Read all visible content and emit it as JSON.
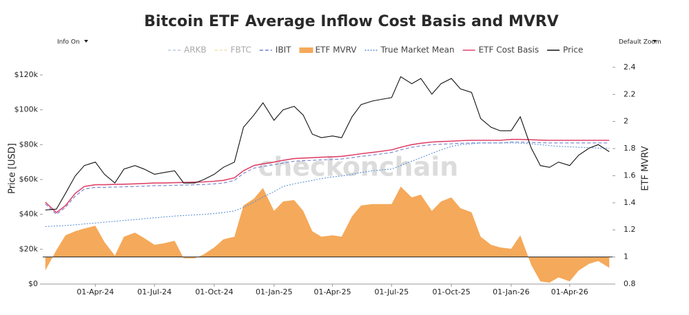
{
  "chart_data": {
    "type": "line",
    "title": "Bitcoin ETF Average Inflow Cost Basis and MVRV",
    "controls": {
      "left": "Info On",
      "right": "Default Zoom"
    },
    "watermark": "checkonchain",
    "y_label": "Price [USD]",
    "y2_label": "ETF MVRV",
    "x": [
      "2024-01-15",
      "2024-02-01",
      "2024-02-15",
      "2024-03-01",
      "2024-03-15",
      "2024-04-01",
      "2024-04-15",
      "2024-05-01",
      "2024-05-15",
      "2024-06-01",
      "2024-06-15",
      "2024-07-01",
      "2024-07-15",
      "2024-08-01",
      "2024-08-15",
      "2024-09-01",
      "2024-09-15",
      "2024-10-01",
      "2024-10-15",
      "2024-11-01",
      "2024-11-15",
      "2024-12-01",
      "2024-12-15",
      "2025-01-01",
      "2025-01-15",
      "2025-02-01",
      "2025-02-15",
      "2025-03-01",
      "2025-03-15",
      "2025-04-01",
      "2025-04-15",
      "2025-05-01",
      "2025-05-15",
      "2025-06-01",
      "2025-06-15",
      "2025-07-01",
      "2025-07-15",
      "2025-08-01",
      "2025-08-15",
      "2025-09-01",
      "2025-09-15",
      "2025-10-01",
      "2025-10-15",
      "2025-11-01",
      "2025-11-15",
      "2025-12-01",
      "2025-12-15",
      "2026-01-01",
      "2026-01-15",
      "2026-02-01",
      "2026-02-15",
      "2026-03-01",
      "2026-03-15",
      "2026-04-01",
      "2026-04-15",
      "2026-05-01",
      "2026-05-15",
      "2026-06-01"
    ],
    "xlim": [
      "2024-01-11",
      "2026-06-06"
    ],
    "xticks": [
      {
        "value": "2024-04-01",
        "label": "01-Apr-24"
      },
      {
        "value": "2024-07-01",
        "label": "01-Jul-24"
      },
      {
        "value": "2024-10-01",
        "label": "01-Oct-24"
      },
      {
        "value": "2025-01-01",
        "label": "01-Jan-25"
      },
      {
        "value": "2025-04-01",
        "label": "01-Apr-25"
      },
      {
        "value": "2025-07-01",
        "label": "01-Jul-25"
      },
      {
        "value": "2025-10-01",
        "label": "01-Oct-25"
      },
      {
        "value": "2026-01-01",
        "label": "01-Jan-26"
      },
      {
        "value": "2026-04-01",
        "label": "01-Apr-26"
      }
    ],
    "ylim": [
      0,
      127500
    ],
    "yticks": [
      {
        "value": 0,
        "label": "$0"
      },
      {
        "value": 20000,
        "label": "$20k"
      },
      {
        "value": 40000,
        "label": "$40k"
      },
      {
        "value": 60000,
        "label": "$60k"
      },
      {
        "value": 80000,
        "label": "$80k"
      },
      {
        "value": 100000,
        "label": "$100k"
      },
      {
        "value": 120000,
        "label": "$120k"
      }
    ],
    "y2lim": [
      0.8,
      2.44
    ],
    "y2ticks": [
      0.8,
      1,
      1.2,
      1.4,
      1.6,
      1.8,
      2,
      2.2,
      2.4
    ],
    "legend_only": [
      {
        "name": "ARKB",
        "color": "#b8c8e0"
      },
      {
        "name": "FBTC",
        "color": "#f3e2a8"
      }
    ],
    "series": [
      {
        "name": "IBIT",
        "color": "#6f7fd0",
        "style": "line",
        "dash": "5,3",
        "values": [
          46000,
          40000,
          44000,
          50500,
          54500,
          55500,
          55500,
          55700,
          55800,
          56000,
          56200,
          56500,
          56500,
          56700,
          56800,
          57000,
          57100,
          57500,
          58000,
          59500,
          63500,
          66500,
          67500,
          68500,
          69500,
          70500,
          70800,
          71000,
          71300,
          71500,
          71800,
          72500,
          73300,
          74000,
          74700,
          75500,
          77000,
          78500,
          79300,
          80000,
          80300,
          80500,
          80800,
          81000,
          81000,
          81000,
          81000,
          81500,
          81500,
          81300,
          81100,
          81000,
          81000,
          81000,
          81000,
          81000,
          81000,
          81000
        ]
      },
      {
        "name": "ETF MVRV",
        "color": "#f5a95a",
        "style": "area",
        "axis": "y2",
        "baseline": 1,
        "values": [
          0.9,
          1.05,
          1.16,
          1.19,
          1.21,
          1.23,
          1.11,
          1.01,
          1.15,
          1.18,
          1.14,
          1.09,
          1.1,
          1.12,
          0.99,
          0.99,
          1.02,
          1.07,
          1.13,
          1.15,
          1.38,
          1.43,
          1.51,
          1.34,
          1.41,
          1.42,
          1.34,
          1.19,
          1.15,
          1.16,
          1.15,
          1.3,
          1.38,
          1.39,
          1.39,
          1.39,
          1.52,
          1.44,
          1.46,
          1.34,
          1.41,
          1.44,
          1.36,
          1.33,
          1.15,
          1.09,
          1.07,
          1.06,
          1.16,
          0.94,
          0.82,
          0.81,
          0.85,
          0.82,
          0.9,
          0.95,
          0.97,
          0.92
        ]
      },
      {
        "name": "True Market Mean",
        "color": "#5b8fd6",
        "style": "line",
        "dash": "2,2",
        "values": [
          33000,
          33300,
          33600,
          34000,
          34500,
          35000,
          35500,
          36000,
          36500,
          37000,
          37500,
          38000,
          38500,
          39000,
          39300,
          39700,
          40000,
          40500,
          41000,
          42000,
          44000,
          47000,
          50000,
          53000,
          56000,
          57500,
          58500,
          59500,
          60500,
          61500,
          62000,
          63000,
          64000,
          65000,
          65500,
          66000,
          68000,
          70500,
          72500,
          75000,
          77000,
          79000,
          80000,
          80500,
          81000,
          81000,
          81000,
          81000,
          80800,
          80500,
          80000,
          79500,
          79000,
          78800,
          78500,
          78300,
          78000,
          78000
        ]
      },
      {
        "name": "ETF Cost Basis",
        "color": "#e0436b",
        "style": "line",
        "dash": "",
        "values": [
          47000,
          41000,
          45000,
          52000,
          56000,
          57000,
          57000,
          57200,
          57300,
          57500,
          57700,
          58000,
          58000,
          58200,
          58300,
          58500,
          58600,
          59000,
          59500,
          61000,
          65000,
          68000,
          69000,
          70000,
          71000,
          72000,
          72300,
          72500,
          72800,
          73000,
          73300,
          74000,
          74800,
          75500,
          76200,
          77000,
          78500,
          80000,
          80800,
          81500,
          81800,
          82000,
          82300,
          82500,
          82500,
          82500,
          82500,
          83000,
          83000,
          82800,
          82600,
          82500,
          82500,
          82500,
          82500,
          82500,
          82500,
          82500
        ]
      },
      {
        "name": "Price",
        "color": "#111111",
        "style": "line",
        "dash": "",
        "values": [
          42500,
          43000,
          52000,
          62000,
          68000,
          70000,
          63000,
          58000,
          66000,
          68000,
          66000,
          63000,
          64000,
          65000,
          58000,
          58000,
          60000,
          63000,
          67000,
          70000,
          90000,
          97000,
          104000,
          94000,
          100000,
          102000,
          97000,
          86000,
          84000,
          85000,
          84000,
          96000,
          103000,
          105000,
          106000,
          107000,
          119000,
          115000,
          118000,
          109000,
          115000,
          118000,
          112000,
          110000,
          95000,
          90000,
          88000,
          88000,
          96000,
          78000,
          68000,
          67000,
          70000,
          68000,
          74000,
          78000,
          80000,
          76000
        ]
      }
    ]
  }
}
